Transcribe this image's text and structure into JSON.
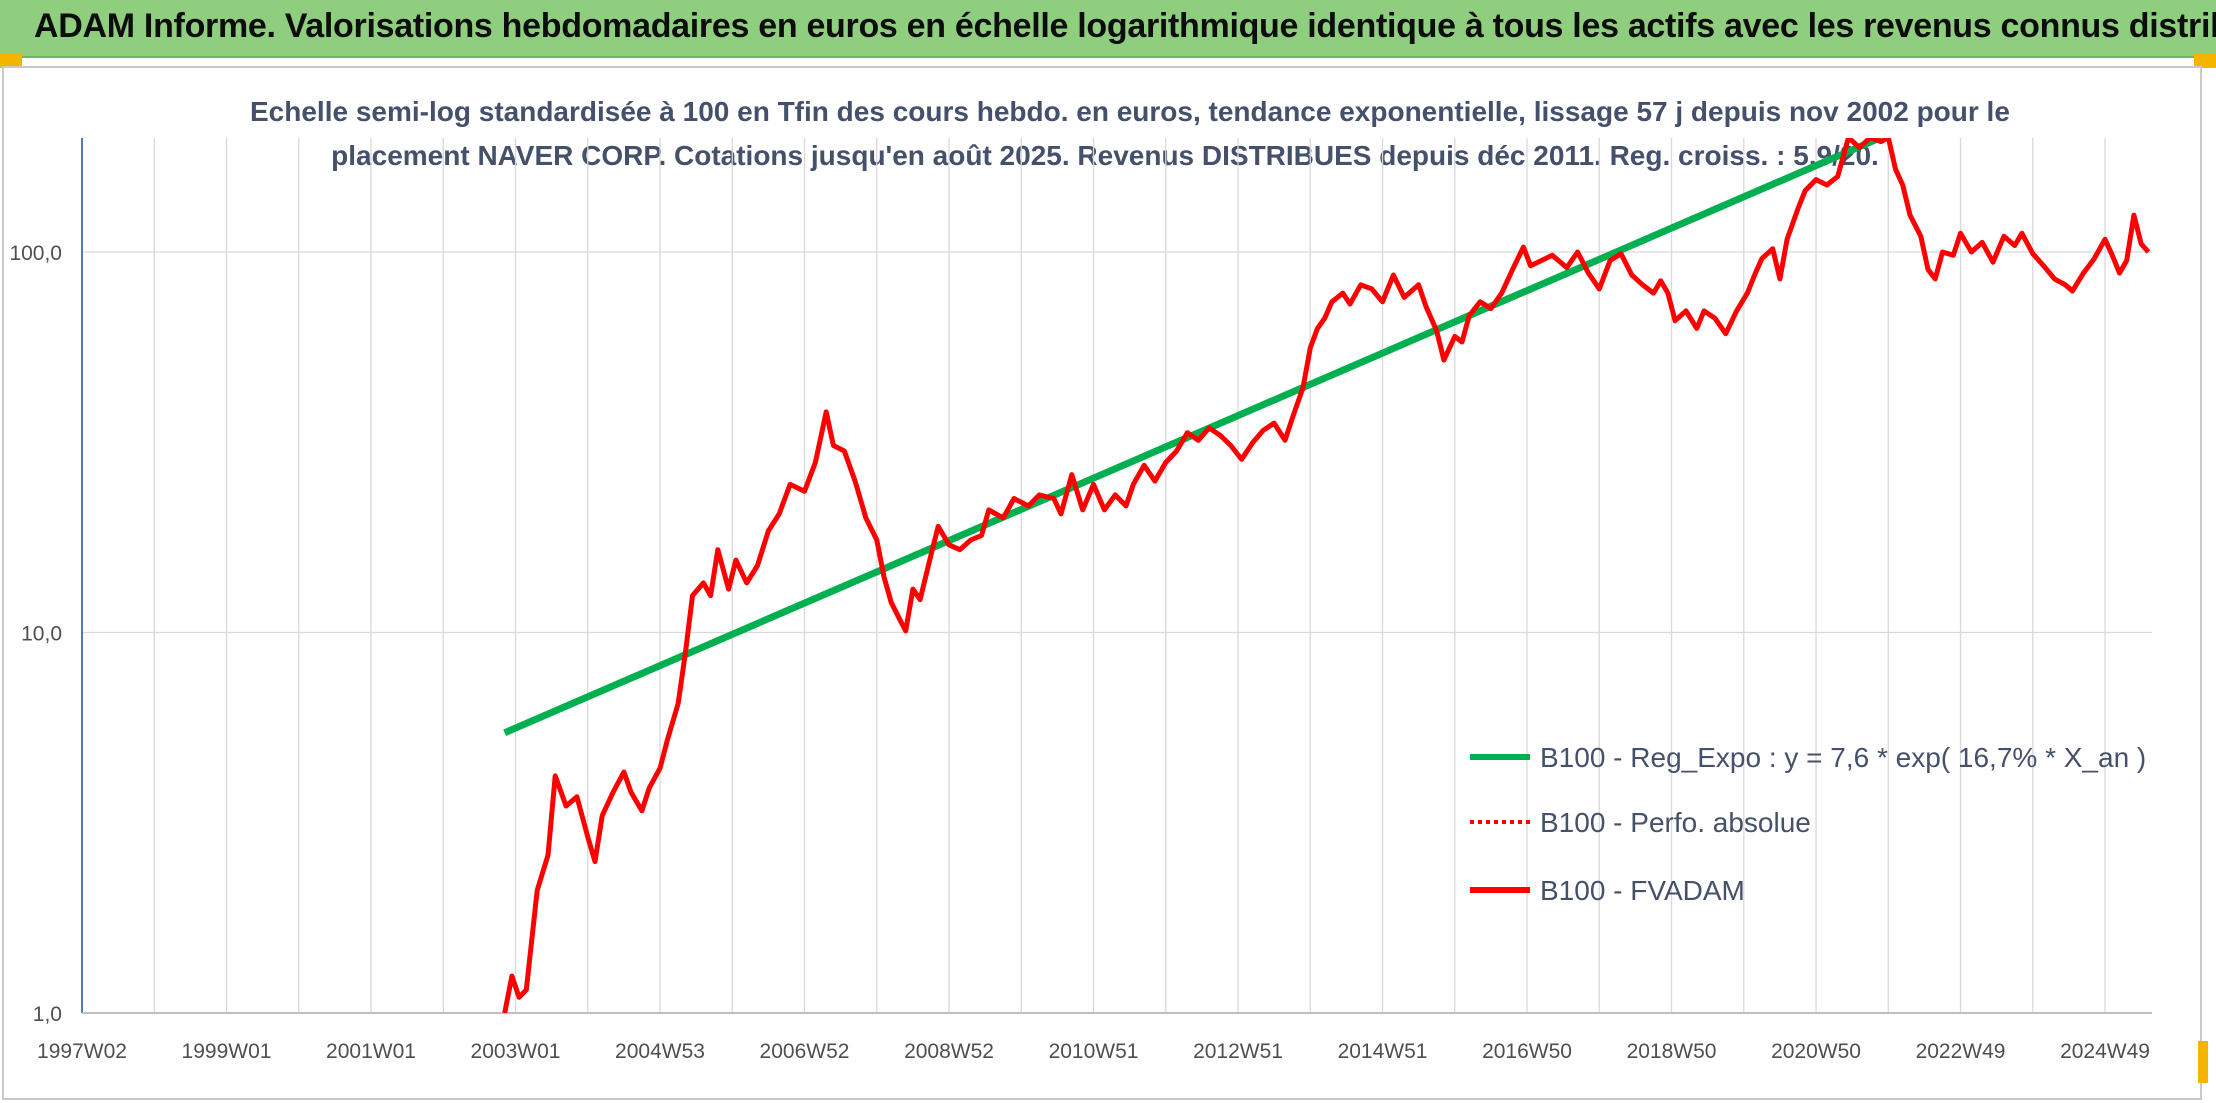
{
  "banner": {
    "title": "ADAM Informe. Valorisations hebdomadaires en euros en échelle logarithmique identique à tous les actifs avec les revenus connus distribués"
  },
  "colors": {
    "banner_bg": "#8fce7f",
    "corner_accent": "#f4b400",
    "series_fvadam": "#ff0000",
    "series_perfo": "#ff0000",
    "series_reg": "#00b050",
    "grid": "#d9d9d9",
    "axis": "#4a7ebb"
  },
  "chart_data": {
    "type": "line",
    "title_line1": "Echelle semi-log standardisée à 100 en Tfin des cours hebdo. en euros, tendance exponentielle, lissage 57 j depuis nov 2002 pour le",
    "title_line2": "placement NAVER CORP. Cotations jusqu'en août 2025. Revenus DISTRIBUES depuis déc 2011. Reg. croiss. : 5,9/20.",
    "y_scale": "log",
    "ylim": [
      1,
      200
    ],
    "y_ticks": [
      1,
      10,
      100
    ],
    "y_tick_labels": [
      "1,0",
      "10,0",
      "100,0"
    ],
    "x_range": [
      1997.0,
      2025.65
    ],
    "x_tick_labels": [
      "1997W02",
      "1999W01",
      "2001W01",
      "2003W01",
      "2004W53",
      "2006W52",
      "2008W52",
      "2010W51",
      "2012W51",
      "2014W51",
      "2016W50",
      "2018W50",
      "2020W50",
      "2022W49",
      "2024W49"
    ],
    "x_tick_values": [
      1997.0,
      1999.0,
      2001.0,
      2003.0,
      2005.0,
      2007.0,
      2009.0,
      2011.0,
      2013.0,
      2015.0,
      2017.0,
      2019.0,
      2021.0,
      2023.0,
      2025.0
    ],
    "grid": "vertical and horizontal",
    "legend_position": "bottom-right",
    "legend": [
      {
        "label": "B100 - Reg_Expo : y = 7,6 * exp( 16,7% *  X_an )",
        "color": "#00b050",
        "style": "solid"
      },
      {
        "label": "B100 - Perfo. absolue",
        "color": "#ff0000",
        "style": "dotted"
      },
      {
        "label": "B100 - FVADAM",
        "color": "#ff0000",
        "style": "solid"
      }
    ],
    "series": [
      {
        "name": "B100 - FVADAM",
        "points": [
          [
            2002.85,
            1.0
          ],
          [
            2002.95,
            1.25
          ],
          [
            2003.05,
            1.1
          ],
          [
            2003.15,
            1.15
          ],
          [
            2003.3,
            2.1
          ],
          [
            2003.45,
            2.6
          ],
          [
            2003.55,
            4.2
          ],
          [
            2003.7,
            3.5
          ],
          [
            2003.85,
            3.7
          ],
          [
            2004.0,
            2.9
          ],
          [
            2004.1,
            2.5
          ],
          [
            2004.2,
            3.3
          ],
          [
            2004.35,
            3.8
          ],
          [
            2004.5,
            4.3
          ],
          [
            2004.6,
            3.8
          ],
          [
            2004.75,
            3.4
          ],
          [
            2004.85,
            3.9
          ],
          [
            2005.0,
            4.4
          ],
          [
            2005.1,
            5.2
          ],
          [
            2005.25,
            6.5
          ],
          [
            2005.35,
            8.8
          ],
          [
            2005.45,
            12.5
          ],
          [
            2005.6,
            13.5
          ],
          [
            2005.7,
            12.5
          ],
          [
            2005.8,
            16.5
          ],
          [
            2005.95,
            13.0
          ],
          [
            2006.05,
            15.5
          ],
          [
            2006.2,
            13.5
          ],
          [
            2006.35,
            15.0
          ],
          [
            2006.5,
            18.5
          ],
          [
            2006.65,
            20.5
          ],
          [
            2006.8,
            24.5
          ],
          [
            2007.0,
            23.5
          ],
          [
            2007.15,
            28.0
          ],
          [
            2007.3,
            38.0
          ],
          [
            2007.4,
            31.0
          ],
          [
            2007.55,
            30.0
          ],
          [
            2007.7,
            25.0
          ],
          [
            2007.85,
            20.0
          ],
          [
            2008.0,
            17.5
          ],
          [
            2008.1,
            14.0
          ],
          [
            2008.2,
            12.0
          ],
          [
            2008.3,
            11.0
          ],
          [
            2008.4,
            10.1
          ],
          [
            2008.5,
            13.0
          ],
          [
            2008.6,
            12.2
          ],
          [
            2008.75,
            16.0
          ],
          [
            2008.85,
            19.0
          ],
          [
            2009.0,
            17.0
          ],
          [
            2009.15,
            16.5
          ],
          [
            2009.3,
            17.5
          ],
          [
            2009.45,
            18.0
          ],
          [
            2009.55,
            21.0
          ],
          [
            2009.75,
            20.0
          ],
          [
            2009.9,
            22.5
          ],
          [
            2010.1,
            21.5
          ],
          [
            2010.25,
            23.0
          ],
          [
            2010.45,
            22.5
          ],
          [
            2010.55,
            20.5
          ],
          [
            2010.7,
            26.0
          ],
          [
            2010.85,
            21.0
          ],
          [
            2011.0,
            24.5
          ],
          [
            2011.15,
            21.0
          ],
          [
            2011.3,
            23.0
          ],
          [
            2011.45,
            21.5
          ],
          [
            2011.55,
            24.5
          ],
          [
            2011.7,
            27.5
          ],
          [
            2011.85,
            25.0
          ],
          [
            2012.0,
            28.0
          ],
          [
            2012.15,
            30.0
          ],
          [
            2012.3,
            33.5
          ],
          [
            2012.45,
            32.0
          ],
          [
            2012.6,
            34.5
          ],
          [
            2012.75,
            33.0
          ],
          [
            2012.9,
            31.0
          ],
          [
            2013.05,
            28.5
          ],
          [
            2013.2,
            31.5
          ],
          [
            2013.35,
            34.0
          ],
          [
            2013.5,
            35.5
          ],
          [
            2013.65,
            32.0
          ],
          [
            2013.75,
            36.5
          ],
          [
            2013.9,
            44.0
          ],
          [
            2014.0,
            56.0
          ],
          [
            2014.1,
            63.0
          ],
          [
            2014.2,
            67.0
          ],
          [
            2014.3,
            74.0
          ],
          [
            2014.45,
            78.0
          ],
          [
            2014.55,
            73.0
          ],
          [
            2014.7,
            82.0
          ],
          [
            2014.85,
            80.0
          ],
          [
            2015.0,
            74.0
          ],
          [
            2015.15,
            87.0
          ],
          [
            2015.3,
            76.0
          ],
          [
            2015.5,
            82.0
          ],
          [
            2015.6,
            72.0
          ],
          [
            2015.75,
            62.0
          ],
          [
            2015.85,
            52.0
          ],
          [
            2016.0,
            60.0
          ],
          [
            2016.1,
            58.0
          ],
          [
            2016.2,
            68.0
          ],
          [
            2016.35,
            74.0
          ],
          [
            2016.5,
            71.0
          ],
          [
            2016.65,
            78.0
          ],
          [
            2016.8,
            90.0
          ],
          [
            2016.95,
            103.0
          ],
          [
            2017.05,
            92.0
          ],
          [
            2017.2,
            95.0
          ],
          [
            2017.35,
            98.0
          ],
          [
            2017.55,
            91.0
          ],
          [
            2017.7,
            100.0
          ],
          [
            2017.85,
            88.0
          ],
          [
            2018.0,
            80.0
          ],
          [
            2018.15,
            95.0
          ],
          [
            2018.3,
            99.0
          ],
          [
            2018.45,
            87.0
          ],
          [
            2018.6,
            82.0
          ],
          [
            2018.75,
            78.0
          ],
          [
            2018.85,
            84.0
          ],
          [
            2018.95,
            78.0
          ],
          [
            2019.05,
            66.0
          ],
          [
            2019.2,
            70.0
          ],
          [
            2019.35,
            63.0
          ],
          [
            2019.45,
            70.0
          ],
          [
            2019.6,
            67.0
          ],
          [
            2019.75,
            61.0
          ],
          [
            2019.9,
            70.0
          ],
          [
            2020.05,
            78.0
          ],
          [
            2020.15,
            87.0
          ],
          [
            2020.25,
            96.0
          ],
          [
            2020.4,
            102.0
          ],
          [
            2020.5,
            85.0
          ],
          [
            2020.6,
            108.0
          ],
          [
            2020.75,
            130.0
          ],
          [
            2020.85,
            145.0
          ],
          [
            2021.0,
            155.0
          ],
          [
            2021.15,
            150.0
          ],
          [
            2021.3,
            158.0
          ],
          [
            2021.45,
            200.0
          ],
          [
            2021.6,
            188.0
          ],
          [
            2021.75,
            200.0
          ],
          [
            2021.9,
            195.0
          ],
          [
            2022.0,
            200.0
          ],
          [
            2022.1,
            165.0
          ],
          [
            2022.2,
            150.0
          ],
          [
            2022.3,
            125.0
          ],
          [
            2022.45,
            110.0
          ],
          [
            2022.55,
            90.0
          ],
          [
            2022.65,
            85.0
          ],
          [
            2022.75,
            100.0
          ],
          [
            2022.9,
            98.0
          ],
          [
            2023.0,
            112.0
          ],
          [
            2023.15,
            100.0
          ],
          [
            2023.3,
            106.0
          ],
          [
            2023.45,
            94.0
          ],
          [
            2023.6,
            110.0
          ],
          [
            2023.75,
            104.0
          ],
          [
            2023.85,
            112.0
          ],
          [
            2024.0,
            99.0
          ],
          [
            2024.15,
            92.0
          ],
          [
            2024.3,
            85.0
          ],
          [
            2024.45,
            82.0
          ],
          [
            2024.55,
            79.0
          ],
          [
            2024.7,
            88.0
          ],
          [
            2024.85,
            96.0
          ],
          [
            2025.0,
            108.0
          ],
          [
            2025.1,
            98.0
          ],
          [
            2025.2,
            88.0
          ],
          [
            2025.3,
            95.0
          ],
          [
            2025.4,
            125.0
          ],
          [
            2025.5,
            105.0
          ],
          [
            2025.6,
            100.0
          ]
        ]
      },
      {
        "name": "B100 - Reg_Expo : y = 7,6 * exp( 16,7% *  X_an )",
        "points": [
          [
            2002.85,
            5.45
          ],
          [
            2021.9,
            200.0
          ]
        ]
      }
    ]
  }
}
